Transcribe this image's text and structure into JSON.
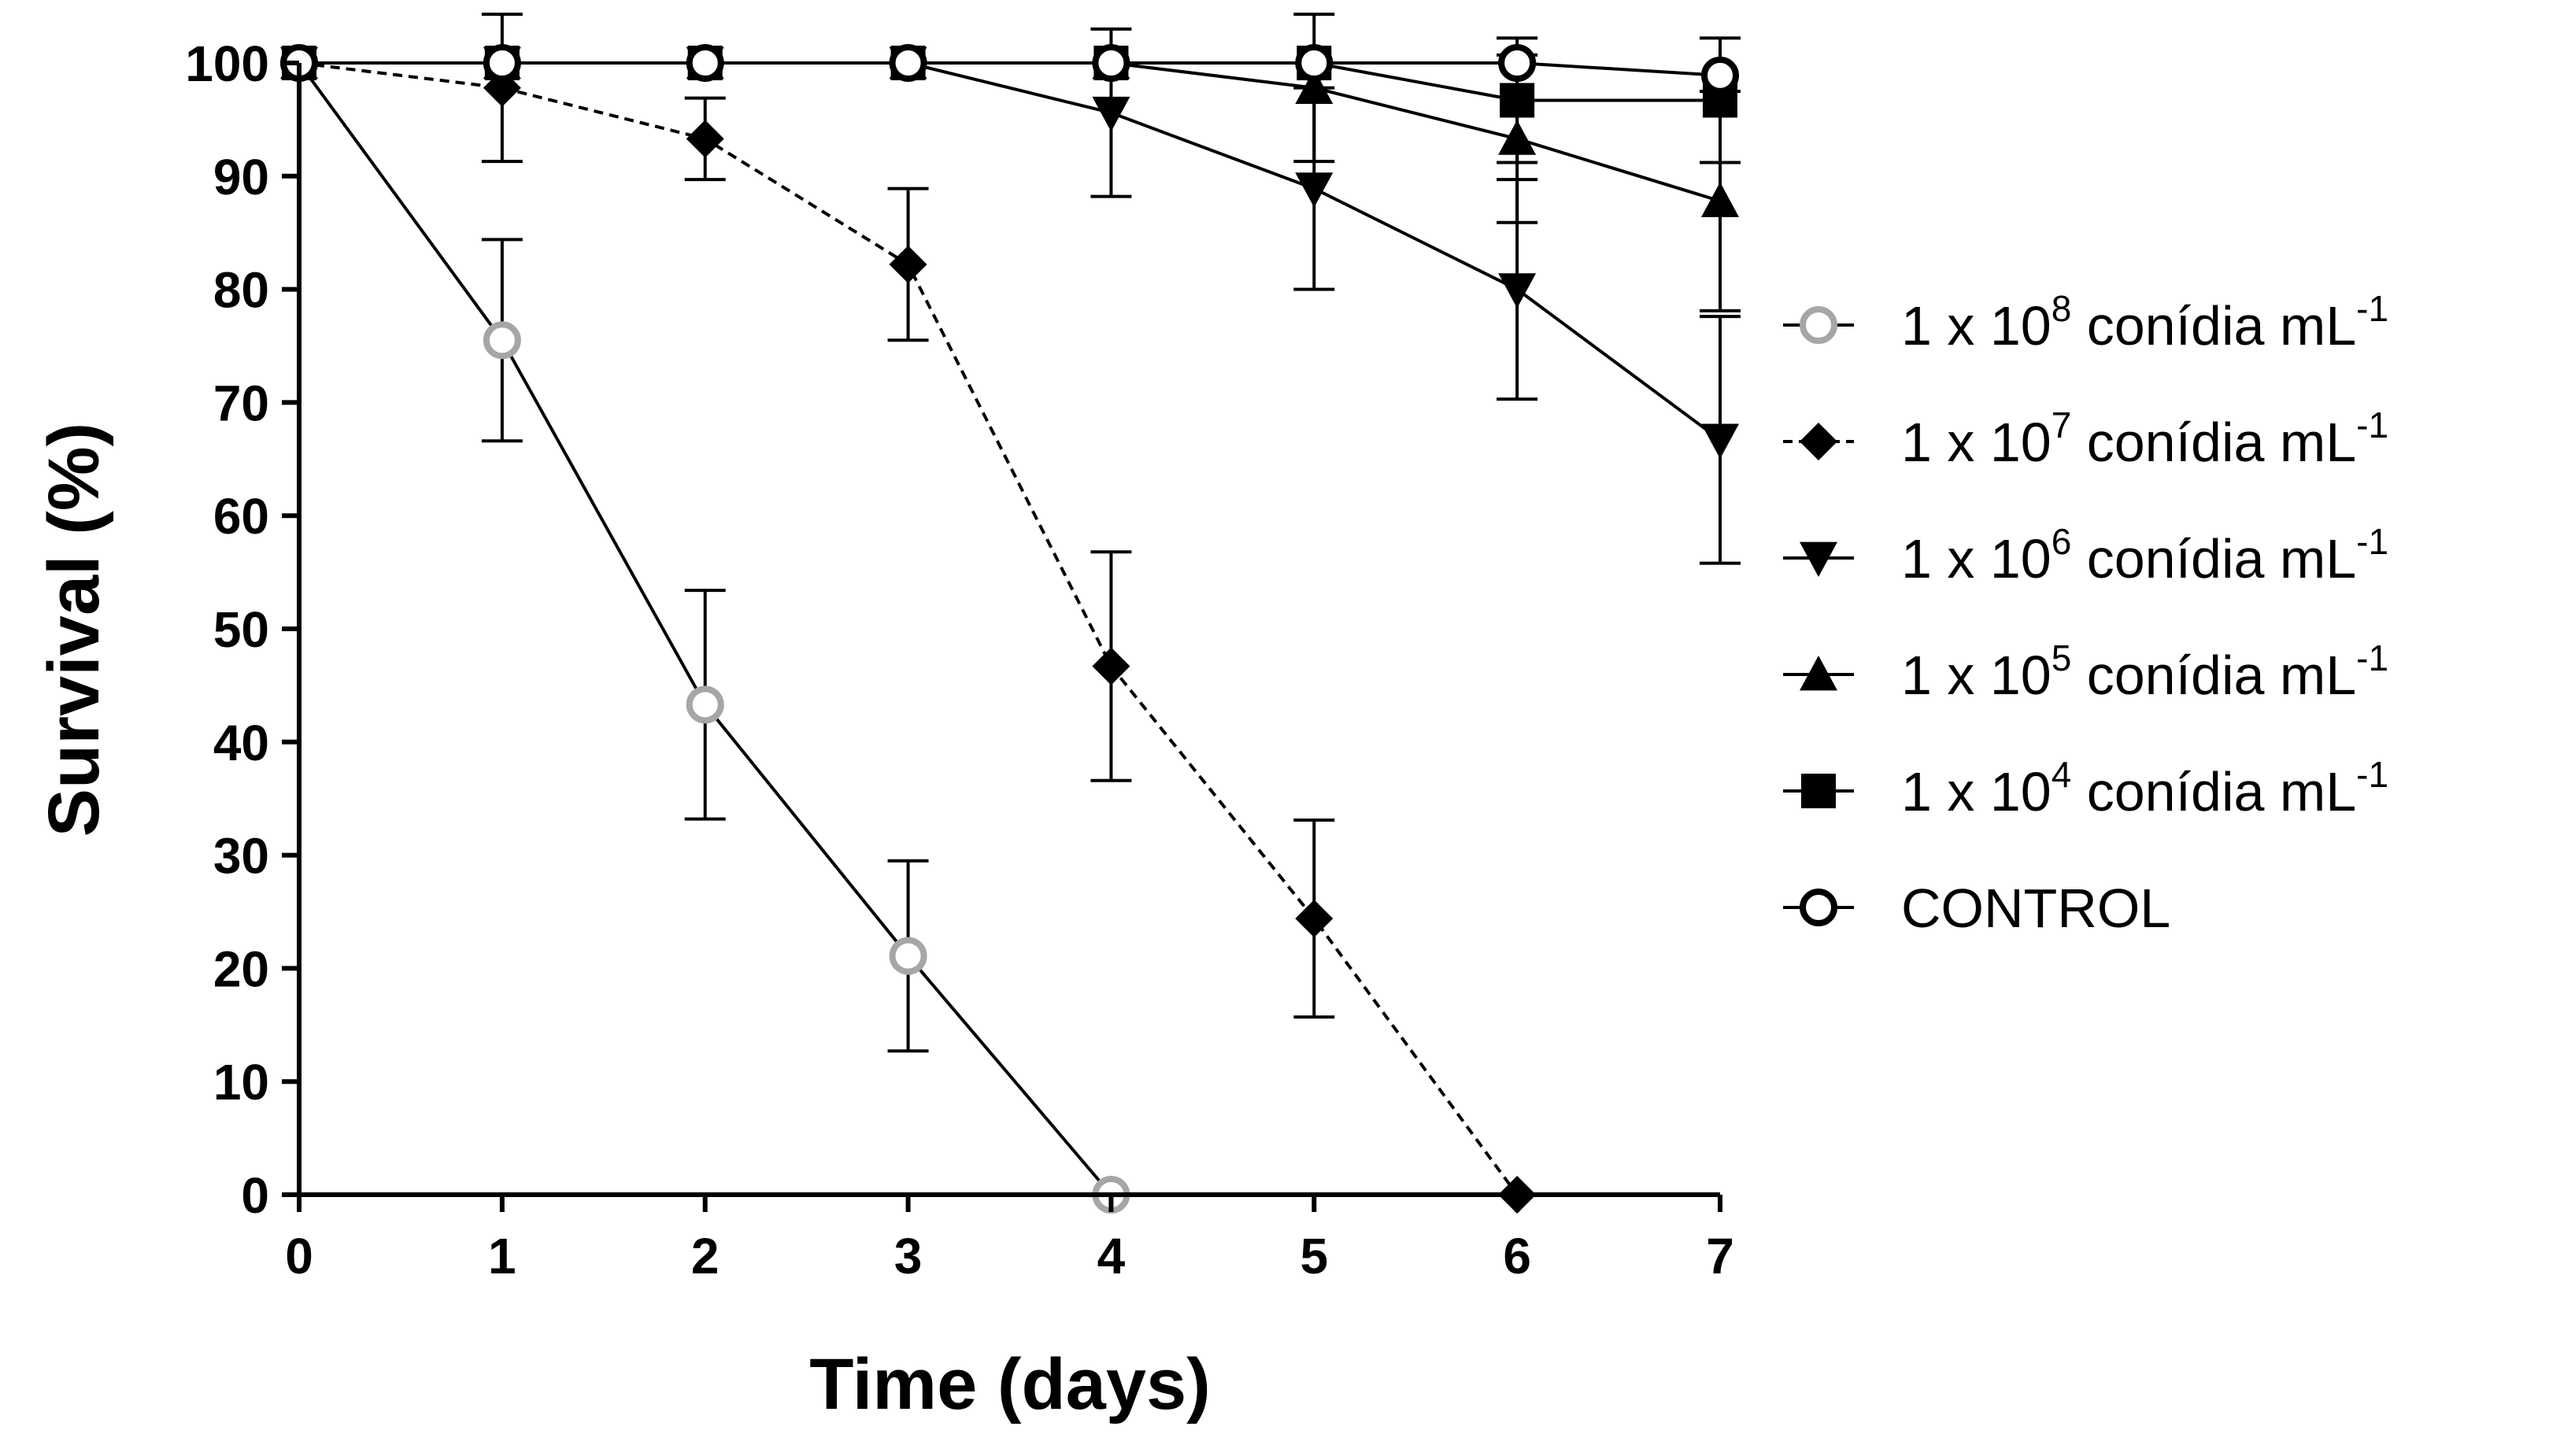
{
  "chart_data": {
    "type": "line",
    "title": "",
    "xlabel": "Time (days)",
    "ylabel": "Survival (%)",
    "xlim": [
      0,
      7
    ],
    "ylim": [
      0,
      100
    ],
    "xticks": [
      "0",
      "1",
      "2",
      "3",
      "4",
      "5",
      "6",
      "7"
    ],
    "yticks": [
      "0",
      "10",
      "20",
      "30",
      "40",
      "50",
      "60",
      "70",
      "80",
      "90",
      "100"
    ],
    "grid": false,
    "legend_position": "right",
    "series": [
      {
        "name": "1 x 10^8 conídia mL^-1",
        "legend": {
          "pre": "1 x 10",
          "exp": "8",
          "mid": " conídia mL",
          "exp2": "-1"
        },
        "marker": "open-circle",
        "color": "#a6a6a6",
        "dash": "solid",
        "x": [
          0,
          1,
          2,
          3,
          4
        ],
        "y": [
          100,
          75.5,
          43.3,
          21.1,
          0
        ],
        "err": [
          0,
          8.9,
          10.1,
          8.4,
          0
        ]
      },
      {
        "name": "1 x 10^7 conídia mL^-1",
        "legend": {
          "pre": "1 x 10",
          "exp": "7",
          "mid": " conídia mL",
          "exp2": "-1"
        },
        "marker": "diamond",
        "color": "#000000",
        "dash": "dashed",
        "x": [
          0,
          1,
          2,
          3,
          4,
          5,
          6
        ],
        "y": [
          100,
          97.8,
          93.3,
          82.2,
          46.7,
          24.4,
          0
        ],
        "err": [
          0,
          6.5,
          3.6,
          6.7,
          10.1,
          8.7,
          0
        ]
      },
      {
        "name": "1 x 10^6 conídia mL^-1",
        "legend": {
          "pre": "1 x 10",
          "exp": "6",
          "mid": " conídia mL",
          "exp2": "-1"
        },
        "marker": "triangle-down",
        "color": "#000000",
        "dash": "solid",
        "x": [
          0,
          1,
          2,
          3,
          4,
          5,
          6,
          7
        ],
        "y": [
          100,
          100,
          100,
          100,
          95.6,
          88.9,
          80.0,
          66.7
        ],
        "err": [
          0,
          0,
          0,
          0,
          7.4,
          8.9,
          9.7,
          10.9
        ]
      },
      {
        "name": "1 x 10^5 conídia mL^-1",
        "legend": {
          "pre": "1 x 10",
          "exp": "5",
          "mid": " conídia mL",
          "exp2": "-1"
        },
        "marker": "triangle-up",
        "color": "#000000",
        "dash": "solid",
        "x": [
          0,
          1,
          2,
          3,
          4,
          5,
          6,
          7
        ],
        "y": [
          100,
          100,
          100,
          100,
          100,
          97.8,
          93.3,
          87.8
        ],
        "err": [
          0,
          0,
          0,
          0,
          0,
          6.5,
          7.4,
          9.7
        ]
      },
      {
        "name": "1 x 10^4 conídia mL^-1",
        "legend": {
          "pre": "1 x 10",
          "exp": "4",
          "mid": " conídia mL",
          "exp2": "-1"
        },
        "marker": "square",
        "color": "#000000",
        "dash": "solid",
        "x": [
          0,
          1,
          2,
          3,
          4,
          5,
          6,
          7
        ],
        "y": [
          100,
          100,
          100,
          100,
          100,
          100,
          96.7,
          96.7
        ],
        "err": [
          0,
          0,
          0,
          0,
          0,
          0,
          5.5,
          5.5
        ]
      },
      {
        "name": "CONTROL",
        "legend": {
          "pre": "CONTROL",
          "exp": "",
          "mid": "",
          "exp2": ""
        },
        "marker": "open-circle",
        "color": "#000000",
        "dash": "solid",
        "x": [
          0,
          1,
          2,
          3,
          4,
          5,
          6,
          7
        ],
        "y": [
          100,
          100,
          100,
          100,
          100,
          100,
          100,
          98.9
        ],
        "err": [
          0,
          0,
          0,
          0,
          0,
          0,
          0,
          0
        ]
      }
    ]
  }
}
